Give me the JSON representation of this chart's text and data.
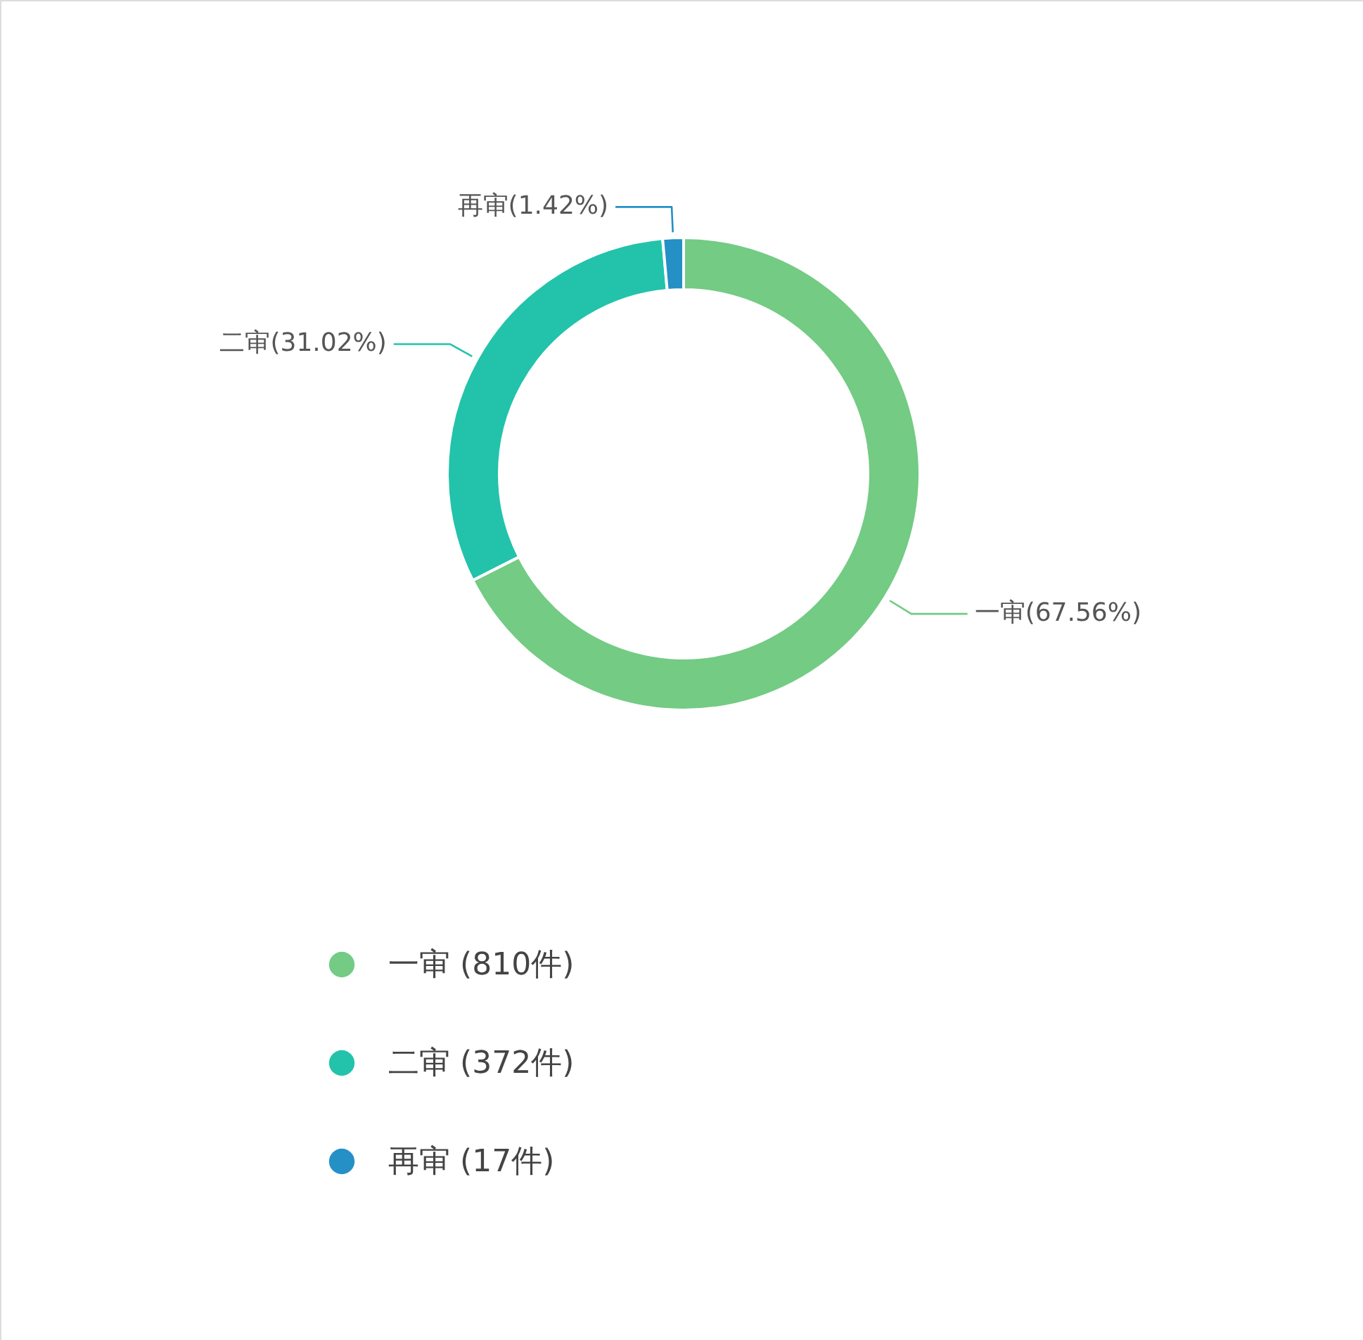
{
  "chart_data": {
    "type": "donut",
    "categories": [
      "一审 (810件)",
      "二审 (372件)",
      "再审 (17件)"
    ],
    "values": [
      810,
      372,
      17
    ],
    "colors": [
      "#73cb84",
      "#22c3aa",
      "#2490c6"
    ],
    "value_labels": [
      "一审(67.56%)",
      "二审(31.02%)",
      "再审(1.42%)"
    ],
    "legend": "bottom"
  }
}
